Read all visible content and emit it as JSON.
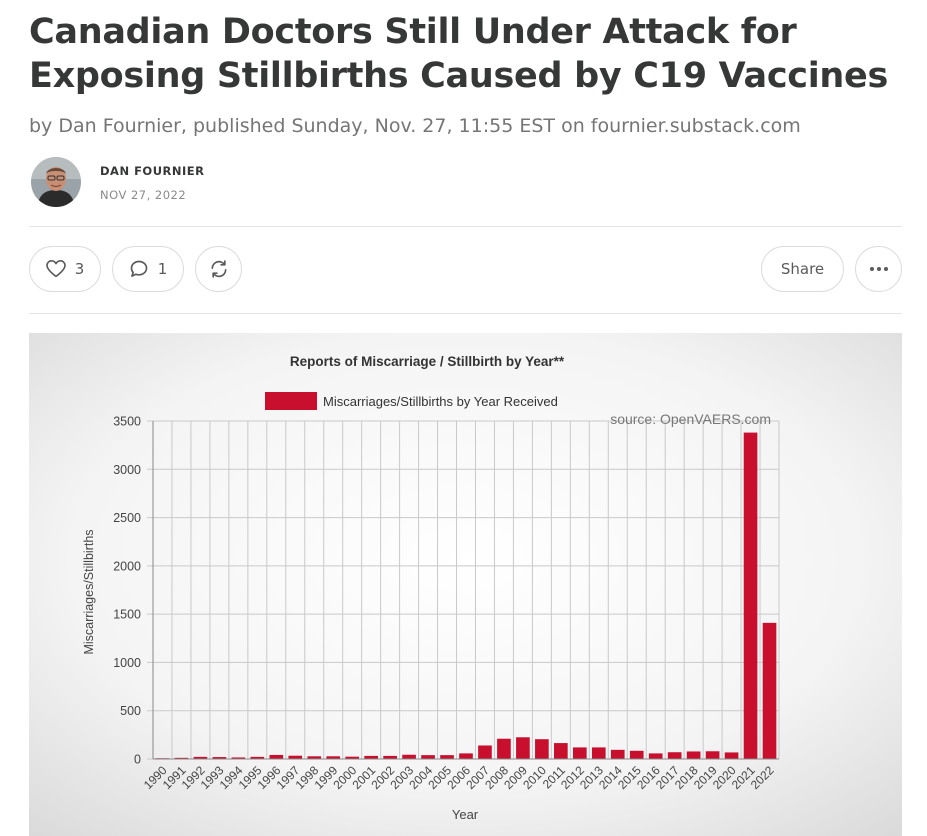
{
  "article": {
    "title": "Canadian Doctors Still Under Attack for Exposing Stillbirths Caused by C19 Vaccines",
    "subtitle": "by Dan Fournier, published Sunday, Nov. 27, 11:55 EST on fournier.substack.com",
    "author_name": "DAN FOURNIER",
    "date": "NOV 27, 2022"
  },
  "actions": {
    "like_count": "3",
    "comment_count": "1",
    "share_label": "Share",
    "like_icon": "heart-icon",
    "comment_icon": "comment-bubble-icon",
    "restack_icon": "restack-icon",
    "more_icon": "ellipsis-icon"
  },
  "colors": {
    "bar": "#c8102e",
    "text": "#363737",
    "muted": "#757575"
  },
  "chart_data": {
    "type": "bar",
    "title": "Reports of Miscarriage / Stillbirth by Year**",
    "legend": "Miscarriages/Stillbirths by Year Received",
    "legend_position": "top-center",
    "source": "source: OpenVAERS.com",
    "xlabel": "Year",
    "ylabel": "Miscarriages/Stillbirths",
    "ylim": [
      0,
      3500
    ],
    "yticks": [
      "0",
      "500",
      "1000",
      "1500",
      "2000",
      "2500",
      "3000",
      "3500"
    ],
    "grid": true,
    "categories": [
      "1990",
      "1991",
      "1992",
      "1993",
      "1994",
      "1995",
      "1996",
      "1997",
      "1998",
      "1999",
      "2000",
      "2001",
      "2002",
      "2003",
      "2004",
      "2005",
      "2006",
      "2007",
      "2008",
      "2009",
      "2010",
      "2011",
      "2012",
      "2013",
      "2014",
      "2015",
      "2016",
      "2017",
      "2018",
      "2019",
      "2020",
      "2021",
      "2022"
    ],
    "series": [
      {
        "name": "Miscarriages/Stillbirths by Year Received",
        "values": [
          8,
          12,
          22,
          20,
          16,
          22,
          42,
          34,
          28,
          28,
          24,
          32,
          32,
          44,
          40,
          40,
          58,
          140,
          210,
          225,
          205,
          165,
          120,
          120,
          95,
          85,
          58,
          70,
          78,
          80,
          68,
          3380,
          1410
        ]
      }
    ]
  }
}
